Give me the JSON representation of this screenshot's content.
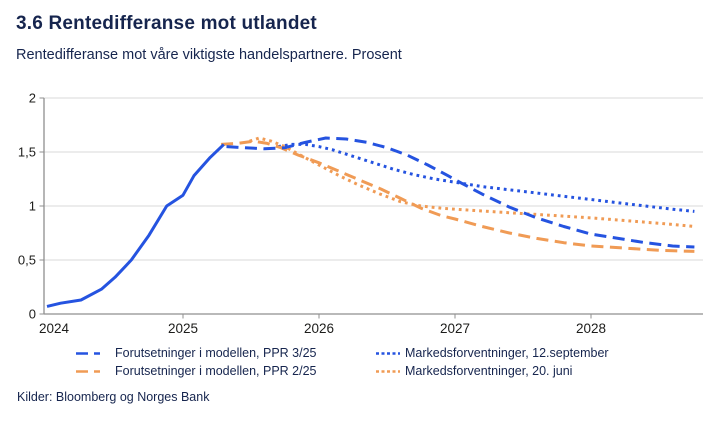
{
  "header": {
    "title": "3.6 Rentedifferanse mot utlandet",
    "subtitle": "Rentedifferanse mot våre viktigste handelspartnere. Prosent"
  },
  "footer": {
    "sources": "Kilder: Bloomberg og Norges Bank"
  },
  "colors": {
    "blue": "#2553e0",
    "orange": "#f09b55",
    "navy_text": "#16254e",
    "tick_text": "#1d1d1b",
    "grid": "#d8d8d8",
    "axis": "#8f8f8f"
  },
  "chart_data": {
    "type": "line",
    "title": "3.6 Rentedifferanse mot utlandet",
    "subtitle": "Rentedifferanse mot våre viktigste handelspartnere. Prosent",
    "xlabel": "",
    "ylabel": "",
    "xlim": [
      2024,
      2028.8
    ],
    "ylim": [
      0,
      2
    ],
    "grid": "horizontal",
    "legend_position": "bottom",
    "yticks": {
      "values": [
        0,
        0.5,
        1,
        1.5,
        2
      ],
      "labels": [
        "0",
        "0,5",
        "1",
        "1,5",
        "2"
      ]
    },
    "xticks": {
      "values": [
        2024,
        2025,
        2026,
        2027,
        2028
      ],
      "labels": [
        "2024",
        "2025",
        "2026",
        "2027",
        "2028"
      ]
    },
    "series": [
      {
        "id": "historisk",
        "style": "solid",
        "color": "#2553e0",
        "points": [
          [
            2024.0,
            0.07
          ],
          [
            2024.1,
            0.1
          ],
          [
            2024.25,
            0.13
          ],
          [
            2024.4,
            0.23
          ],
          [
            2024.5,
            0.34
          ],
          [
            2024.62,
            0.5
          ],
          [
            2024.75,
            0.73
          ],
          [
            2024.88,
            1.0
          ],
          [
            2025.0,
            1.1
          ],
          [
            2025.08,
            1.28
          ],
          [
            2025.2,
            1.45
          ],
          [
            2025.3,
            1.57
          ]
        ]
      },
      {
        "id": "ppr-3-25",
        "name": "Forutsetninger i modellen, PPR 3/25",
        "style": "dashed",
        "color": "#2553e0",
        "points": [
          [
            2025.32,
            1.55
          ],
          [
            2025.45,
            1.54
          ],
          [
            2025.6,
            1.53
          ],
          [
            2025.75,
            1.54
          ],
          [
            2025.9,
            1.59
          ],
          [
            2026.05,
            1.63
          ],
          [
            2026.2,
            1.62
          ],
          [
            2026.35,
            1.59
          ],
          [
            2026.5,
            1.54
          ],
          [
            2026.65,
            1.47
          ],
          [
            2026.8,
            1.38
          ],
          [
            2026.95,
            1.28
          ],
          [
            2027.05,
            1.21
          ],
          [
            2027.2,
            1.11
          ],
          [
            2027.4,
            0.99
          ],
          [
            2027.6,
            0.89
          ],
          [
            2027.8,
            0.81
          ],
          [
            2028.0,
            0.74
          ],
          [
            2028.2,
            0.7
          ],
          [
            2028.4,
            0.66
          ],
          [
            2028.6,
            0.63
          ],
          [
            2028.76,
            0.62
          ]
        ]
      },
      {
        "id": "ppr-2-25",
        "name": "Forutsetninger i modellen, PPR 2/25",
        "style": "dashed",
        "color": "#f09b55",
        "points": [
          [
            2025.28,
            1.57
          ],
          [
            2025.4,
            1.58
          ],
          [
            2025.52,
            1.6
          ],
          [
            2025.62,
            1.58
          ],
          [
            2025.72,
            1.54
          ],
          [
            2025.85,
            1.47
          ],
          [
            2026.0,
            1.4
          ],
          [
            2026.15,
            1.32
          ],
          [
            2026.3,
            1.24
          ],
          [
            2026.45,
            1.16
          ],
          [
            2026.6,
            1.07
          ],
          [
            2026.75,
            0.98
          ],
          [
            2026.9,
            0.91
          ],
          [
            2027.0,
            0.88
          ],
          [
            2027.2,
            0.81
          ],
          [
            2027.4,
            0.75
          ],
          [
            2027.6,
            0.7
          ],
          [
            2027.8,
            0.66
          ],
          [
            2028.0,
            0.63
          ],
          [
            2028.25,
            0.61
          ],
          [
            2028.5,
            0.59
          ],
          [
            2028.76,
            0.58
          ]
        ]
      },
      {
        "id": "marked-12-september",
        "name": "Markedsforventninger, 12.september",
        "style": "dotted",
        "color": "#2553e0",
        "points": [
          [
            2025.7,
            1.55
          ],
          [
            2025.8,
            1.57
          ],
          [
            2025.9,
            1.57
          ],
          [
            2026.0,
            1.55
          ],
          [
            2026.1,
            1.52
          ],
          [
            2026.25,
            1.46
          ],
          [
            2026.4,
            1.4
          ],
          [
            2026.55,
            1.34
          ],
          [
            2026.7,
            1.29
          ],
          [
            2026.85,
            1.25
          ],
          [
            2027.0,
            1.22
          ],
          [
            2027.2,
            1.18
          ],
          [
            2027.4,
            1.15
          ],
          [
            2027.6,
            1.12
          ],
          [
            2027.8,
            1.09
          ],
          [
            2028.0,
            1.06
          ],
          [
            2028.2,
            1.03
          ],
          [
            2028.4,
            1.0
          ],
          [
            2028.6,
            0.97
          ],
          [
            2028.76,
            0.95
          ]
        ]
      },
      {
        "id": "marked-20-juni",
        "name": "Markedsforventninger, 20. juni",
        "style": "dotted",
        "color": "#f09b55",
        "points": [
          [
            2025.49,
            1.6
          ],
          [
            2025.56,
            1.63
          ],
          [
            2025.65,
            1.6
          ],
          [
            2025.75,
            1.55
          ],
          [
            2025.85,
            1.48
          ],
          [
            2026.0,
            1.38
          ],
          [
            2026.15,
            1.28
          ],
          [
            2026.3,
            1.19
          ],
          [
            2026.45,
            1.11
          ],
          [
            2026.6,
            1.04
          ],
          [
            2026.75,
            1.0
          ],
          [
            2026.9,
            0.98
          ],
          [
            2027.0,
            0.97
          ],
          [
            2027.25,
            0.95
          ],
          [
            2027.5,
            0.93
          ],
          [
            2027.75,
            0.91
          ],
          [
            2028.0,
            0.89
          ],
          [
            2028.2,
            0.87
          ],
          [
            2028.4,
            0.85
          ],
          [
            2028.6,
            0.83
          ],
          [
            2028.76,
            0.81
          ]
        ]
      }
    ]
  }
}
